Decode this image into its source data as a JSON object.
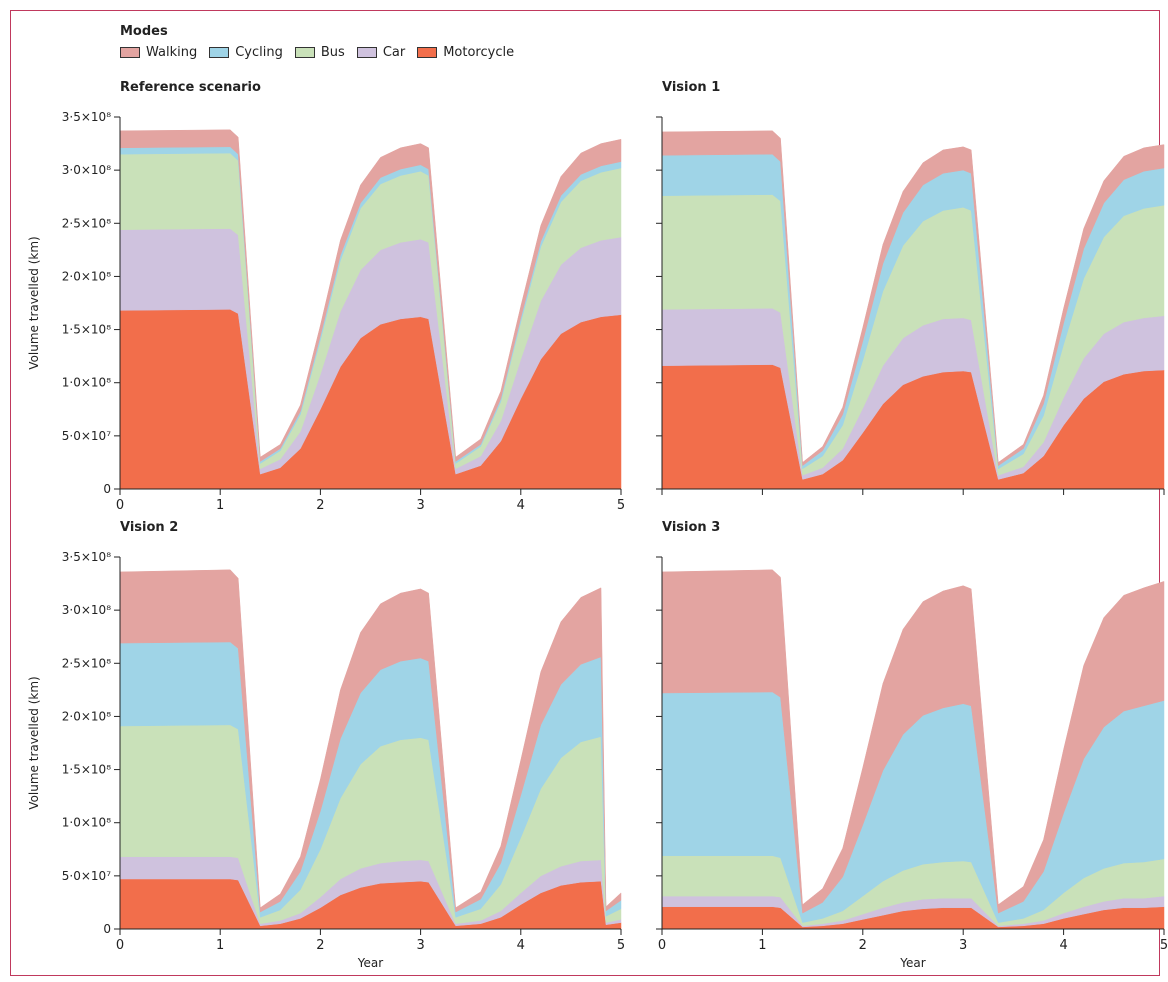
{
  "legend": {
    "title": "Modes",
    "items": [
      {
        "label": "Walking",
        "color": "#e3a4a1"
      },
      {
        "label": "Cycling",
        "color": "#9fd4e7"
      },
      {
        "label": "Bus",
        "color": "#c9e1b9"
      },
      {
        "label": "Car",
        "color": "#cfc2de"
      },
      {
        "label": "Motorcycle",
        "color": "#f26e4b"
      }
    ]
  },
  "chart_data": [
    {
      "type": "area",
      "stacked": true,
      "title": "Reference scenario",
      "xlabel": "",
      "ylabel": "Volume travelled (km)",
      "xlim": [
        0,
        5
      ],
      "ylim": [
        0,
        350000000
      ],
      "x_ticks": [
        "0",
        "1",
        "2",
        "3",
        "4",
        "5"
      ],
      "y_ticks": [
        "0",
        "5·0×10⁷",
        "1·0×10⁸",
        "1·5×10⁸",
        "2·0×10⁸",
        "2·5×10⁸",
        "3·0×10⁸",
        "3·5×10⁸"
      ],
      "x": [
        0,
        1.1,
        1.18,
        1.4,
        1.6,
        1.8,
        2.0,
        2.2,
        2.4,
        2.6,
        2.8,
        3.0,
        3.08,
        3.35,
        3.6,
        3.8,
        4.0,
        4.2,
        4.4,
        4.6,
        4.8,
        5.0
      ],
      "series": [
        {
          "name": "Motorcycle",
          "values": [
            168000000,
            169000000,
            165000000,
            14000000,
            20000000,
            38000000,
            75000000,
            115000000,
            142000000,
            155000000,
            160000000,
            162000000,
            160000000,
            14000000,
            22000000,
            45000000,
            85000000,
            122000000,
            146000000,
            157000000,
            162000000,
            164000000
          ]
        },
        {
          "name": "Car",
          "values": [
            76000000,
            76000000,
            74000000,
            5000000,
            8000000,
            16000000,
            33000000,
            52000000,
            64000000,
            70000000,
            72000000,
            73000000,
            72000000,
            5000000,
            9000000,
            19000000,
            37000000,
            55000000,
            65000000,
            70000000,
            72000000,
            73000000
          ]
        },
        {
          "name": "Bus",
          "values": [
            71000000,
            71000000,
            70000000,
            5000000,
            8000000,
            16000000,
            32000000,
            48000000,
            58000000,
            62000000,
            63000000,
            64000000,
            63000000,
            5000000,
            9000000,
            18000000,
            35000000,
            51000000,
            59000000,
            63000000,
            64000000,
            65000000
          ]
        },
        {
          "name": "Cycling",
          "values": [
            6000000,
            6000000,
            6000000,
            2000000,
            2000000,
            3000000,
            4000000,
            5000000,
            5000000,
            6000000,
            6000000,
            6000000,
            6000000,
            2000000,
            2000000,
            3000000,
            4000000,
            5000000,
            6000000,
            6000000,
            6000000,
            6000000
          ]
        },
        {
          "name": "Walking",
          "values": [
            16000000,
            16000000,
            16000000,
            4000000,
            4000000,
            6000000,
            10000000,
            14000000,
            17000000,
            19000000,
            20000000,
            20000000,
            20000000,
            4000000,
            5000000,
            7000000,
            11000000,
            15000000,
            18000000,
            20000000,
            21000000,
            21000000
          ]
        }
      ]
    },
    {
      "type": "area",
      "stacked": true,
      "title": "Vision 1",
      "xlabel": "",
      "ylabel": "",
      "xlim": [
        0,
        5
      ],
      "ylim": [
        0,
        350000000
      ],
      "x_ticks": [],
      "y_ticks": [],
      "x": [
        0,
        1.1,
        1.18,
        1.4,
        1.6,
        1.8,
        2.0,
        2.2,
        2.4,
        2.6,
        2.8,
        3.0,
        3.08,
        3.35,
        3.6,
        3.8,
        4.0,
        4.2,
        4.4,
        4.6,
        4.8,
        5.0
      ],
      "series": [
        {
          "name": "Motorcycle",
          "values": [
            116000000,
            117000000,
            114000000,
            9000000,
            14000000,
            27000000,
            53000000,
            80000000,
            98000000,
            106000000,
            110000000,
            111000000,
            110000000,
            9000000,
            15000000,
            31000000,
            60000000,
            85000000,
            101000000,
            108000000,
            111000000,
            112000000
          ]
        },
        {
          "name": "Car",
          "values": [
            53000000,
            53000000,
            52000000,
            4000000,
            6000000,
            11000000,
            23000000,
            36000000,
            44000000,
            48000000,
            50000000,
            50000000,
            49000000,
            4000000,
            6000000,
            13000000,
            26000000,
            38000000,
            45000000,
            49000000,
            50000000,
            51000000
          ]
        },
        {
          "name": "Bus",
          "values": [
            107000000,
            107000000,
            105000000,
            6000000,
            11000000,
            22000000,
            45000000,
            70000000,
            87000000,
            98000000,
            102000000,
            104000000,
            103000000,
            6000000,
            12000000,
            25000000,
            50000000,
            75000000,
            91000000,
            100000000,
            103000000,
            104000000
          ]
        },
        {
          "name": "Cycling",
          "values": [
            38000000,
            38000000,
            37000000,
            3000000,
            5000000,
            10000000,
            18000000,
            26000000,
            31000000,
            34000000,
            35000000,
            35000000,
            35000000,
            3000000,
            5000000,
            11000000,
            20000000,
            28000000,
            32000000,
            34000000,
            35000000,
            35000000
          ]
        },
        {
          "name": "Walking",
          "values": [
            22000000,
            22000000,
            22000000,
            3000000,
            4000000,
            7000000,
            13000000,
            18000000,
            20000000,
            21000000,
            22000000,
            22000000,
            22000000,
            3000000,
            4000000,
            8000000,
            14000000,
            19000000,
            21000000,
            22000000,
            22000000,
            22000000
          ]
        }
      ]
    },
    {
      "type": "area",
      "stacked": true,
      "title": "Vision 2",
      "xlabel": "Year",
      "ylabel": "Volume travelled (km)",
      "xlim": [
        0,
        5
      ],
      "ylim": [
        0,
        350000000
      ],
      "x_ticks": [
        "0",
        "1",
        "2",
        "3",
        "4",
        "5"
      ],
      "y_ticks": [
        "0",
        "5·0×10⁷",
        "1·0×10⁸",
        "1·5×10⁸",
        "2·0×10⁸",
        "2·5×10⁸",
        "3·0×10⁸",
        "3·5×10⁸"
      ],
      "x": [
        0,
        1.1,
        1.18,
        1.4,
        1.6,
        1.8,
        2.0,
        2.2,
        2.4,
        2.6,
        2.8,
        3.0,
        3.08,
        3.35,
        3.6,
        3.8,
        4.0,
        4.2,
        4.4,
        4.6,
        4.8,
        4.85,
        5.0
      ],
      "series": [
        {
          "name": "Motorcycle",
          "values": [
            47000000,
            47000000,
            46000000,
            3000000,
            5000000,
            10000000,
            20000000,
            32000000,
            39000000,
            43000000,
            44000000,
            45000000,
            44000000,
            3000000,
            5000000,
            11000000,
            23000000,
            34000000,
            41000000,
            44000000,
            45000000,
            4000000,
            6000000
          ]
        },
        {
          "name": "Car",
          "values": [
            21000000,
            21000000,
            21000000,
            2000000,
            3000000,
            5000000,
            10000000,
            15000000,
            18000000,
            19000000,
            20000000,
            20000000,
            20000000,
            2000000,
            3000000,
            6000000,
            11000000,
            16000000,
            18000000,
            20000000,
            20000000,
            2000000,
            3000000
          ]
        },
        {
          "name": "Bus",
          "values": [
            123000000,
            124000000,
            121000000,
            6000000,
            10000000,
            22000000,
            45000000,
            76000000,
            98000000,
            110000000,
            114000000,
            115000000,
            114000000,
            6000000,
            11000000,
            25000000,
            52000000,
            82000000,
            102000000,
            112000000,
            116000000,
            6000000,
            10000000
          ]
        },
        {
          "name": "Cycling",
          "values": [
            78000000,
            78000000,
            76000000,
            5000000,
            8000000,
            17000000,
            36000000,
            56000000,
            67000000,
            72000000,
            74000000,
            75000000,
            74000000,
            5000000,
            9000000,
            20000000,
            40000000,
            60000000,
            69000000,
            73000000,
            75000000,
            5000000,
            8000000
          ]
        },
        {
          "name": "Walking",
          "values": [
            67000000,
            68000000,
            66000000,
            4000000,
            7000000,
            14000000,
            30000000,
            46000000,
            57000000,
            62000000,
            64000000,
            65000000,
            64000000,
            4000000,
            7000000,
            16000000,
            33000000,
            50000000,
            59000000,
            63000000,
            65000000,
            4000000,
            7000000
          ]
        }
      ]
    },
    {
      "type": "area",
      "stacked": true,
      "title": "Vision 3",
      "xlabel": "Year",
      "ylabel": "",
      "xlim": [
        0,
        5
      ],
      "ylim": [
        0,
        350000000
      ],
      "x_ticks": [
        "0",
        "1",
        "2",
        "3",
        "4",
        "5"
      ],
      "y_ticks": [],
      "x": [
        0,
        1.1,
        1.18,
        1.4,
        1.6,
        1.8,
        2.0,
        2.2,
        2.4,
        2.6,
        2.8,
        3.0,
        3.08,
        3.35,
        3.6,
        3.8,
        4.0,
        4.2,
        4.4,
        4.6,
        4.8,
        5.0
      ],
      "series": [
        {
          "name": "Motorcycle",
          "values": [
            21000000,
            21000000,
            20000000,
            2000000,
            3000000,
            5000000,
            9000000,
            13000000,
            17000000,
            19000000,
            20000000,
            20000000,
            20000000,
            2000000,
            3000000,
            5000000,
            10000000,
            14000000,
            18000000,
            20000000,
            20000000,
            21000000
          ]
        },
        {
          "name": "Car",
          "values": [
            10000000,
            10000000,
            10000000,
            1000000,
            2000000,
            3000000,
            5000000,
            7000000,
            8000000,
            9000000,
            9000000,
            9000000,
            9000000,
            1000000,
            2000000,
            3000000,
            5000000,
            7000000,
            8000000,
            9000000,
            9000000,
            10000000
          ]
        },
        {
          "name": "Bus",
          "values": [
            38000000,
            38000000,
            37000000,
            3000000,
            5000000,
            9000000,
            17000000,
            25000000,
            30000000,
            33000000,
            34000000,
            35000000,
            34000000,
            3000000,
            5000000,
            10000000,
            19000000,
            27000000,
            31000000,
            33000000,
            34000000,
            35000000
          ]
        },
        {
          "name": "Cycling",
          "values": [
            153000000,
            154000000,
            151000000,
            9000000,
            15000000,
            32000000,
            67000000,
            104000000,
            128000000,
            140000000,
            145000000,
            148000000,
            147000000,
            9000000,
            16000000,
            36000000,
            75000000,
            112000000,
            133000000,
            143000000,
            147000000,
            149000000
          ]
        },
        {
          "name": "Walking",
          "values": [
            114000000,
            115000000,
            113000000,
            8000000,
            13000000,
            27000000,
            54000000,
            82000000,
            99000000,
            107000000,
            110000000,
            111000000,
            110000000,
            8000000,
            14000000,
            30000000,
            60000000,
            88000000,
            103000000,
            109000000,
            111000000,
            112000000
          ]
        }
      ]
    }
  ]
}
